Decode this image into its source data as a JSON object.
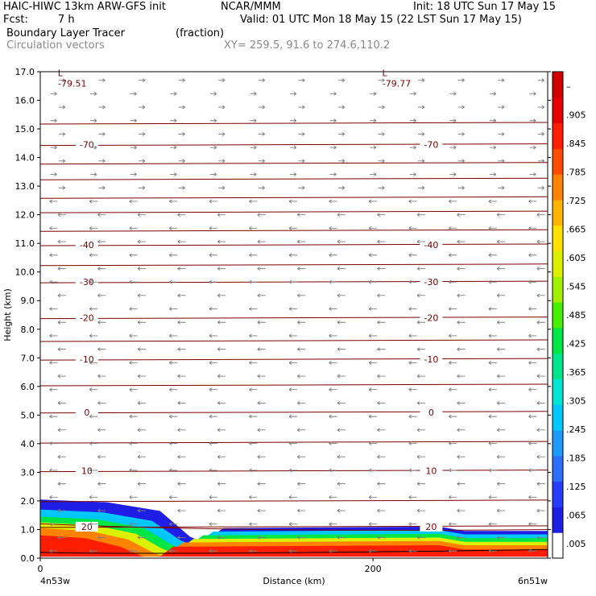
{
  "header": {
    "model": "HAIC-HIWC 13km ARW-GFS init",
    "org": "NCAR/MMM",
    "init": "Init: 18 UTC Sun 17 May 15",
    "fcst_label": "Fcst:",
    "fcst_value": "7 h",
    "valid": "Valid: 01 UTC Mon 18 May 15 (22 LST Sun 17 May 15)",
    "field": "Boundary Layer Tracer",
    "field_units": "(fraction)",
    "overlay": "Circulation vectors",
    "xy": "XY= 259.5, 91.6 to 274.6,110.2"
  },
  "chart_data": {
    "type": "heatmap",
    "xlabel": "Distance (km)",
    "ylabel": "Height (km)",
    "xlim": [
      0,
      305
    ],
    "ylim": [
      0,
      17
    ],
    "x_ticks": [
      {
        "v": 0,
        "label": "0"
      },
      {
        "v": 200,
        "label": "200"
      }
    ],
    "y_ticks": [
      "0.0",
      "1.0",
      "2.0",
      "3.0",
      "4.0",
      "5.0",
      "6.0",
      "7.0",
      "8.0",
      "9.0",
      "10.0",
      "11.0",
      "12.0",
      "13.0",
      "14.0",
      "15.0",
      "16.0",
      "17.0"
    ],
    "x_endpoints": {
      "left": "4n53w",
      "right": "6n51w"
    },
    "colorbar": {
      "labels": [
        ".005",
        ".065",
        ".125",
        ".185",
        ".245",
        ".305",
        ".365",
        ".425",
        ".485",
        ".545",
        ".605",
        ".665",
        ".725",
        ".785",
        ".845",
        ".905",
        "–"
      ],
      "colors": [
        "#ffffff",
        "#1e1ee6",
        "#283cff",
        "#2d6eff",
        "#1e9bff",
        "#00c8ff",
        "#00e6d2",
        "#00e68c",
        "#00e646",
        "#46f000",
        "#a0f000",
        "#dcf000",
        "#ffe100",
        "#ffb400",
        "#ff8200",
        "#ff4b00",
        "#ff1e00",
        "#e60000",
        "#d20000"
      ]
    },
    "tracer_shading": {
      "description_levels": [
        0.005,
        0.3,
        0.6,
        0.9
      ],
      "low_layer_top_km": 1.1,
      "left_plume_top_km": 2.05,
      "left_plume_extent_km": [
        0,
        90
      ]
    },
    "temperature_contours": [
      {
        "label": "-70",
        "y": 14.45
      },
      {
        "label": "-40",
        "y": 10.95
      },
      {
        "label": "-30",
        "y": 9.65
      },
      {
        "label": "-20",
        "y": 8.4
      },
      {
        "label": "-10",
        "y": 6.95
      },
      {
        "label": "0",
        "y": 5.1
      },
      {
        "label": "10",
        "y": 3.05
      },
      {
        "label": "20",
        "y": 1.1
      }
    ],
    "other_contour_heights": [
      15.2,
      13.8,
      13.25,
      12.6,
      12.1,
      11.45,
      10.25,
      7.6,
      6.05,
      4.05,
      2.0
    ],
    "extrema": [
      {
        "symbol": "L",
        "value": "-79.51",
        "x": 12,
        "y": 16.9
      },
      {
        "symbol": "L",
        "value": "-79.77",
        "x": 207,
        "y": 16.9
      }
    ]
  }
}
